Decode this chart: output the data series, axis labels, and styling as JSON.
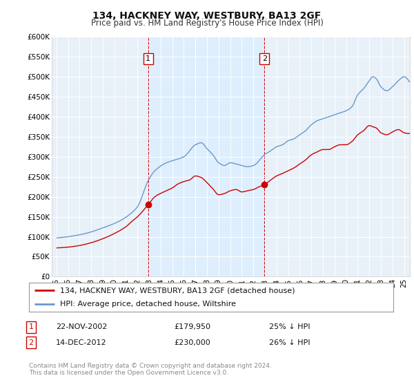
{
  "title": "134, HACKNEY WAY, WESTBURY, BA13 2GF",
  "subtitle": "Price paid vs. HM Land Registry's House Price Index (HPI)",
  "red_label": "134, HACKNEY WAY, WESTBURY, BA13 2GF (detached house)",
  "blue_label": "HPI: Average price, detached house, Wiltshire",
  "footer1": "Contains HM Land Registry data © Crown copyright and database right 2024.",
  "footer2": "This data is licensed under the Open Government Licence v3.0.",
  "annotation1": {
    "num": "1",
    "date": "22-NOV-2002",
    "price": "£179,950",
    "pct": "25% ↓ HPI"
  },
  "annotation2": {
    "num": "2",
    "date": "14-DEC-2012",
    "price": "£230,000",
    "pct": "26% ↓ HPI"
  },
  "ylim": [
    0,
    600000
  ],
  "yticks": [
    0,
    50000,
    100000,
    150000,
    200000,
    250000,
    300000,
    350000,
    400000,
    450000,
    500000,
    550000,
    600000
  ],
  "ytick_labels": [
    "£0",
    "£50K",
    "£100K",
    "£150K",
    "£200K",
    "£250K",
    "£300K",
    "£350K",
    "£400K",
    "£450K",
    "£500K",
    "£550K",
    "£600K"
  ],
  "xtick_years": [
    "95",
    "96",
    "97",
    "98",
    "99",
    "00",
    "01",
    "02",
    "03",
    "04",
    "05",
    "06",
    "07",
    "08",
    "09",
    "10",
    "11",
    "12",
    "13",
    "14",
    "15",
    "16",
    "17",
    "18",
    "19",
    "20",
    "21",
    "22",
    "23",
    "24",
    "25"
  ],
  "xtick_vals": [
    1995,
    1996,
    1997,
    1998,
    1999,
    2000,
    2001,
    2002,
    2003,
    2004,
    2005,
    2006,
    2007,
    2008,
    2009,
    2010,
    2011,
    2012,
    2013,
    2014,
    2015,
    2016,
    2017,
    2018,
    2019,
    2020,
    2021,
    2022,
    2023,
    2024,
    2025
  ],
  "vline1_x": 2002.917,
  "vline2_x": 2012.958,
  "sale1_x": 2002.917,
  "sale1_y": 179950,
  "sale2_x": 2012.958,
  "sale2_y": 230000,
  "red_color": "#cc0000",
  "blue_color": "#6699cc",
  "shade_color": "#ddeeff",
  "vline_color": "#cc0000",
  "background_plot": "#e8f0f8",
  "background_fig": "#ffffff",
  "grid_color": "#ffffff"
}
